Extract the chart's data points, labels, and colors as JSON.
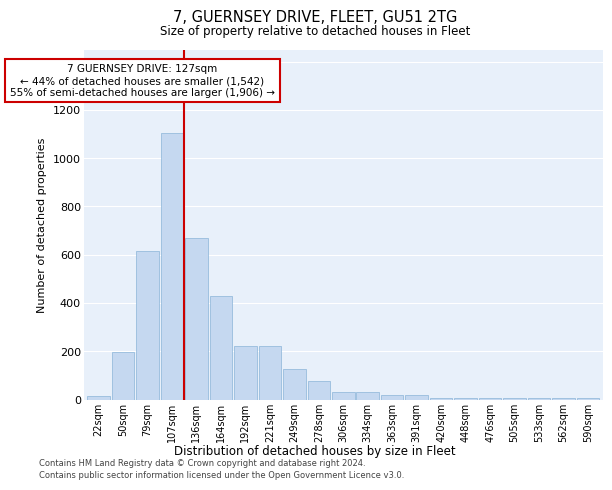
{
  "title": "7, GUERNSEY DRIVE, FLEET, GU51 2TG",
  "subtitle": "Size of property relative to detached houses in Fleet",
  "xlabel": "Distribution of detached houses by size in Fleet",
  "ylabel": "Number of detached properties",
  "categories": [
    "22sqm",
    "50sqm",
    "79sqm",
    "107sqm",
    "136sqm",
    "164sqm",
    "192sqm",
    "221sqm",
    "249sqm",
    "278sqm",
    "306sqm",
    "334sqm",
    "363sqm",
    "391sqm",
    "420sqm",
    "448sqm",
    "476sqm",
    "505sqm",
    "533sqm",
    "562sqm",
    "590sqm"
  ],
  "values": [
    15,
    195,
    615,
    1105,
    670,
    430,
    220,
    220,
    125,
    75,
    30,
    30,
    20,
    20,
    5,
    5,
    5,
    5,
    5,
    5,
    5
  ],
  "bar_color": "#c5d8f0",
  "bar_edge_color": "#8ab4d8",
  "vline_color": "#cc0000",
  "ylim": [
    0,
    1450
  ],
  "yticks": [
    0,
    200,
    400,
    600,
    800,
    1000,
    1200,
    1400
  ],
  "property_label": "7 GUERNSEY DRIVE: 127sqm",
  "annotation_line1": "← 44% of detached houses are smaller (1,542)",
  "annotation_line2": "55% of semi-detached houses are larger (1,906) →",
  "footer_line1": "Contains HM Land Registry data © Crown copyright and database right 2024.",
  "footer_line2": "Contains public sector information licensed under the Open Government Licence v3.0.",
  "fig_bg_color": "#ffffff",
  "plot_bg_color": "#e8f0fa",
  "grid_color": "#ffffff",
  "vline_x": 3.475
}
